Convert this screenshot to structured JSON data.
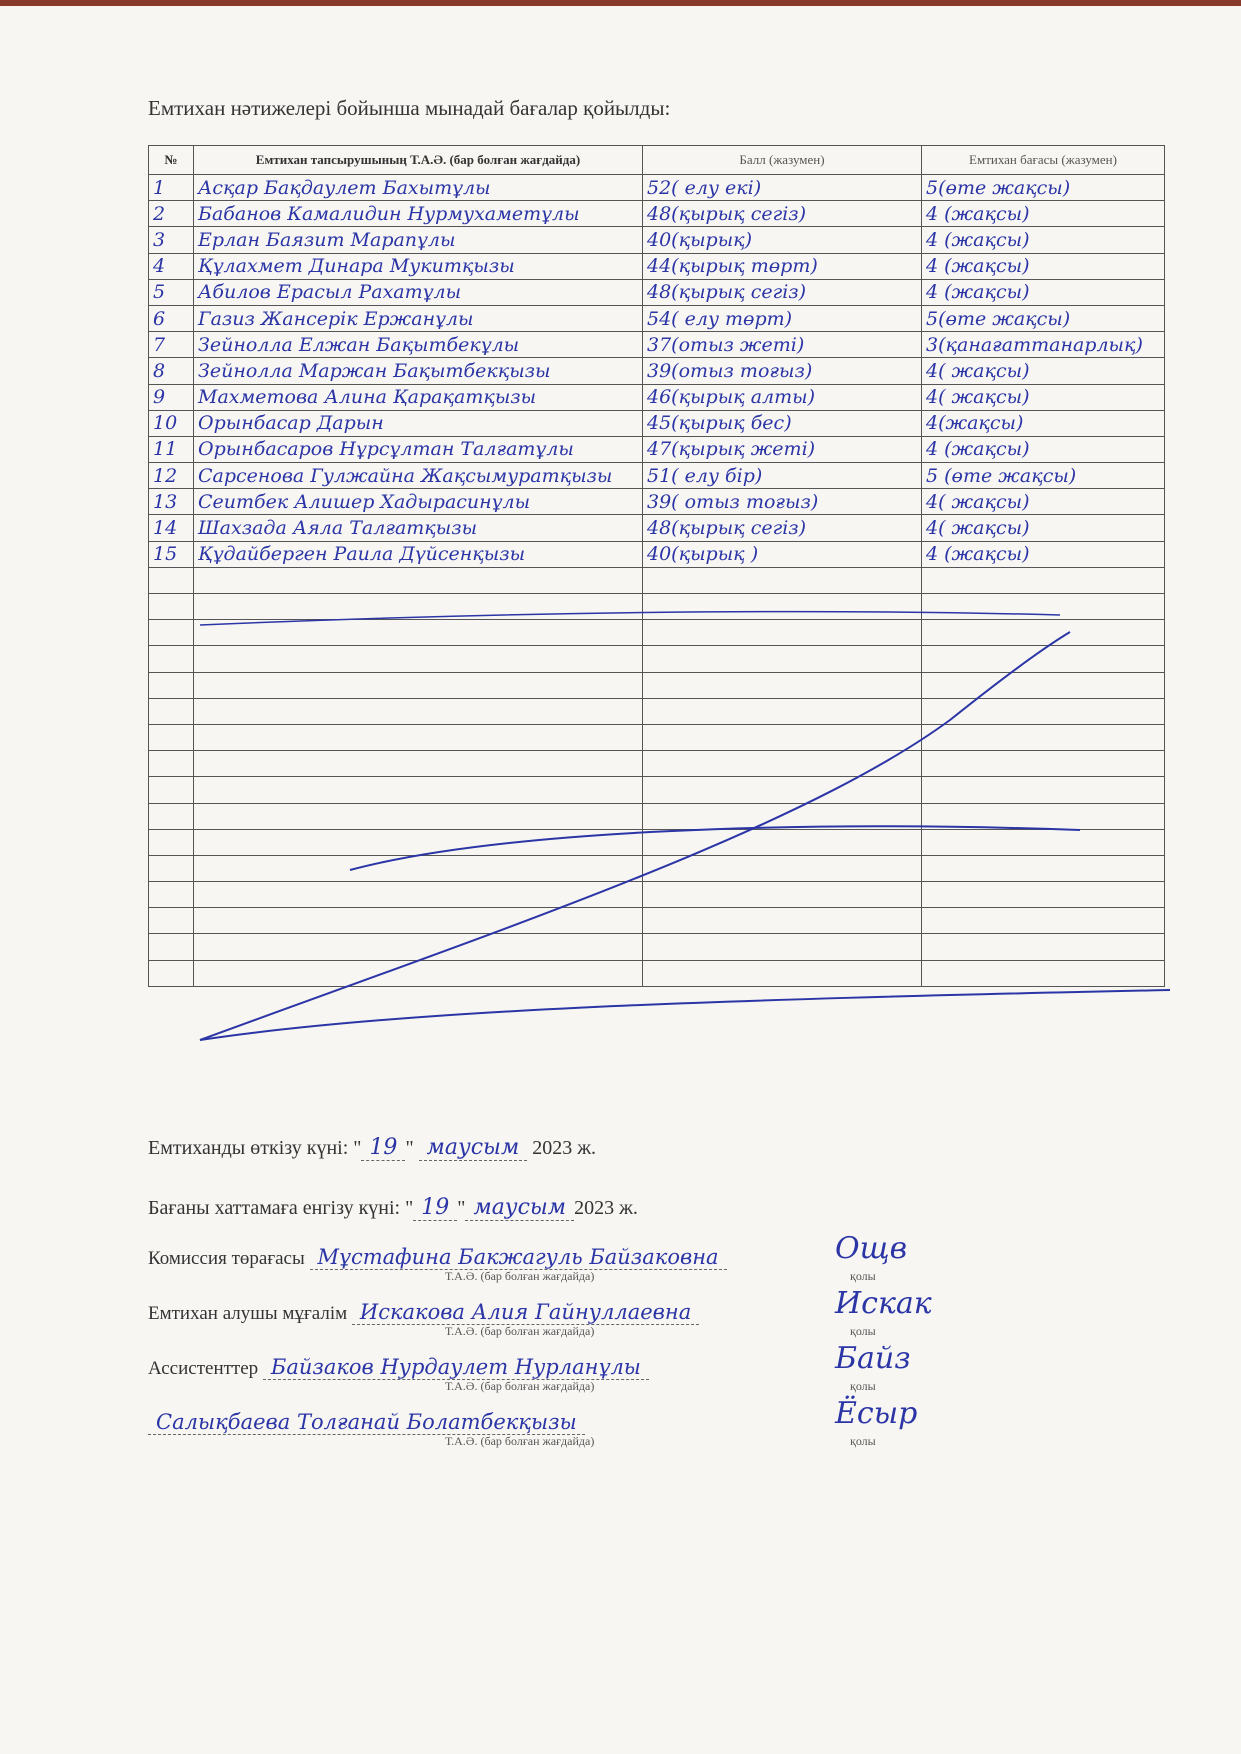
{
  "heading": "Емтихан нәтижелері бойынша мынадай бағалар қойылды:",
  "table": {
    "headers": [
      "№",
      "Емтихан тапсырушының Т.А.Ә. (бар болған жағдайда)",
      "Балл (жазумен)",
      "Емтихан бағасы (жазумен)"
    ],
    "rows": [
      {
        "n": "1",
        "name": "Асқар Бақдаулет Бахытұлы",
        "score": "52( елу екі)",
        "grade": "5(өте жақсы)"
      },
      {
        "n": "2",
        "name": "Бабанов Камалидин Нурмухаметұлы",
        "score": "48(қырық сегіз)",
        "grade": "4 (жақсы)"
      },
      {
        "n": "3",
        "name": "Ерлан Баязит Марапұлы",
        "score": "40(қырық)",
        "grade": "4 (жақсы)"
      },
      {
        "n": "4",
        "name": "Құлахмет Динара Мукитқызы",
        "score": "44(қырық төрт)",
        "grade": "4 (жақсы)"
      },
      {
        "n": "5",
        "name": "Абилов Ерасыл Рахатұлы",
        "score": "48(қырық сегіз)",
        "grade": "4 (жақсы)"
      },
      {
        "n": "6",
        "name": "Газиз Жансерік Ержанұлы",
        "score": "54( елу төрт)",
        "grade": "5(өте жақсы)"
      },
      {
        "n": "7",
        "name": "Зейнолла Елжан Бақытбекұлы",
        "score": "37(отыз жеті)",
        "grade": "3(қанағаттанарлық)"
      },
      {
        "n": "8",
        "name": "Зейнолла Маржан Бақытбекқызы",
        "score": "39(отыз тоғыз)",
        "grade": "4( жақсы)"
      },
      {
        "n": "9",
        "name": "Махметова Алина Қарақатқызы",
        "score": "46(қырық алты)",
        "grade": "4( жақсы)"
      },
      {
        "n": "10",
        "name": "Орынбасар Дарын",
        "score": "45(қырық бес)",
        "grade": "4(жақсы)"
      },
      {
        "n": "11",
        "name": "Орынбасаров Нұрсұлтан Талғатұлы",
        "score": "47(қырық жеті)",
        "grade": "4 (жақсы)"
      },
      {
        "n": "12",
        "name": "Сарсенова Гулжайна Жақсымуратқызы",
        "score": "51( елу бір)",
        "grade": "5 (өте жақсы)"
      },
      {
        "n": "13",
        "name": "Сеитбек Алишер Хадырасинұлы",
        "score": "39( отыз тоғыз)",
        "grade": "4( жақсы)"
      },
      {
        "n": "14",
        "name": "Шахзада Аяла Талғатқызы",
        "score": "48(қырық сегіз)",
        "grade": "4( жақсы)"
      },
      {
        "n": "15",
        "name": "Құдайберген Раила Дүйсенқызы",
        "score": "40(қырық )",
        "grade": "4 (жақсы)"
      }
    ]
  },
  "exam_date": {
    "label": "Емтиханды өткізу күні: \"",
    "day": "19",
    "quote": "\"",
    "month": "маусым",
    "year": "2023 ж."
  },
  "entry_date": {
    "label": "Бағаны хаттамаға енгізу күні: \"",
    "day": "19",
    "quote": "\"",
    "month": "маусым",
    "year": "2023 ж."
  },
  "signatures": [
    {
      "role": "Комиссия төрағасы",
      "name": "Мұстафина Бакжагуль Байзаковна",
      "sub": "Т.А.Ә. (бар болған жағдайда)",
      "sign_label": "қолы",
      "sign": "Ощв"
    },
    {
      "role": "Емтихан алушы мұғалім",
      "name": "Искакова Алия Гайнуллаевна",
      "sub": "Т.А.Ә. (бар болған жағдайда)",
      "sign_label": "қолы",
      "sign": "Искак"
    },
    {
      "role": "Ассистенттер",
      "name": "Байзаков Нурдаулет Нурланұлы",
      "sub": "Т.А.Ә. (бар болған жағдайда)",
      "sign_label": "қолы",
      "sign": "Байз"
    },
    {
      "role": "",
      "name": "Салықбаева Толғанай Болатбекқызы",
      "sub": "Т.А.Ә. (бар болған жағдайда)",
      "sign_label": "қолы",
      "sign": "Ёсыр"
    }
  ],
  "colors": {
    "ink": "#2b35a6"
  }
}
